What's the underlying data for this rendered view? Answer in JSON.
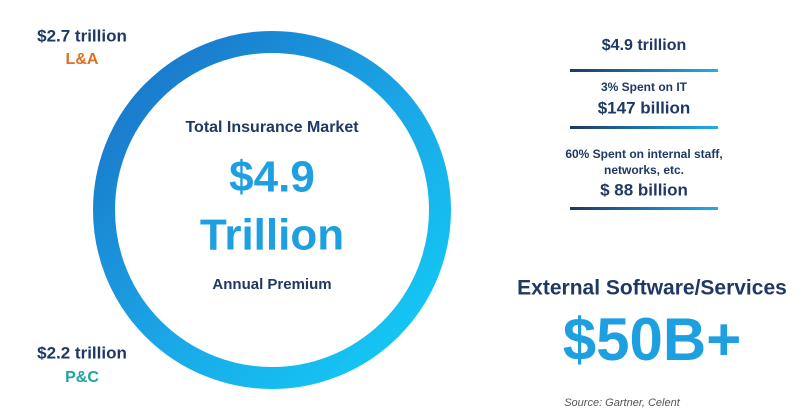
{
  "segments": {
    "life_annuity": {
      "amount": "$2.7 trillion",
      "label": "L&A"
    },
    "property_casualty": {
      "amount": "$2.2 trillion",
      "label": "P&C"
    }
  },
  "ring": {
    "title": "Total Insurance Market",
    "amount": "$4.9",
    "unit": "Trillion",
    "caption": "Annual Premium"
  },
  "breakdown": {
    "total": "$4.9 trillion",
    "it_spend": {
      "label": "3% Spent on IT",
      "amount": "$147 billion"
    },
    "internal": {
      "label_line1": "60% Spent on internal staff,",
      "label_line2": "networks, etc.",
      "amount": "$ 88 billion"
    }
  },
  "highlight": {
    "title": "External Software/Services",
    "amount": "$50B+"
  },
  "source": "Source: Gartner, Celent"
}
